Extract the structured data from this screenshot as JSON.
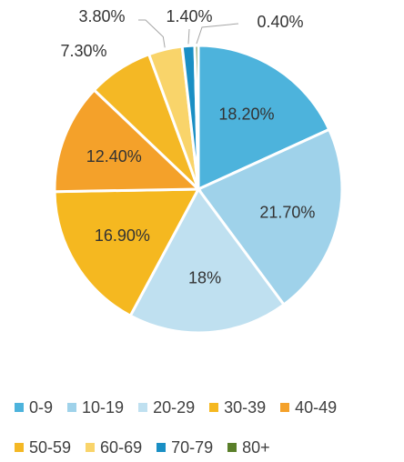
{
  "chart_data": {
    "type": "pie",
    "categories": [
      "0-9",
      "10-19",
      "20-29",
      "30-39",
      "40-49",
      "50-59",
      "60-69",
      "70-79",
      "80+"
    ],
    "values": [
      18.2,
      21.7,
      18.0,
      16.9,
      12.4,
      7.3,
      3.8,
      1.4,
      0.4
    ],
    "data_labels": [
      "18.20%",
      "21.70%",
      "18%",
      "16.90%",
      "12.40%",
      "7.30%",
      "3.80%",
      "1.40%",
      "0.40%"
    ],
    "colors": [
      "#4db3dc",
      "#9fd2ea",
      "#bfe0f0",
      "#f5b820",
      "#f4a12a",
      "#f4b825",
      "#f9d46a",
      "#1a8fc4",
      "#5a7f2a"
    ],
    "legend_position": "bottom",
    "title": ""
  }
}
